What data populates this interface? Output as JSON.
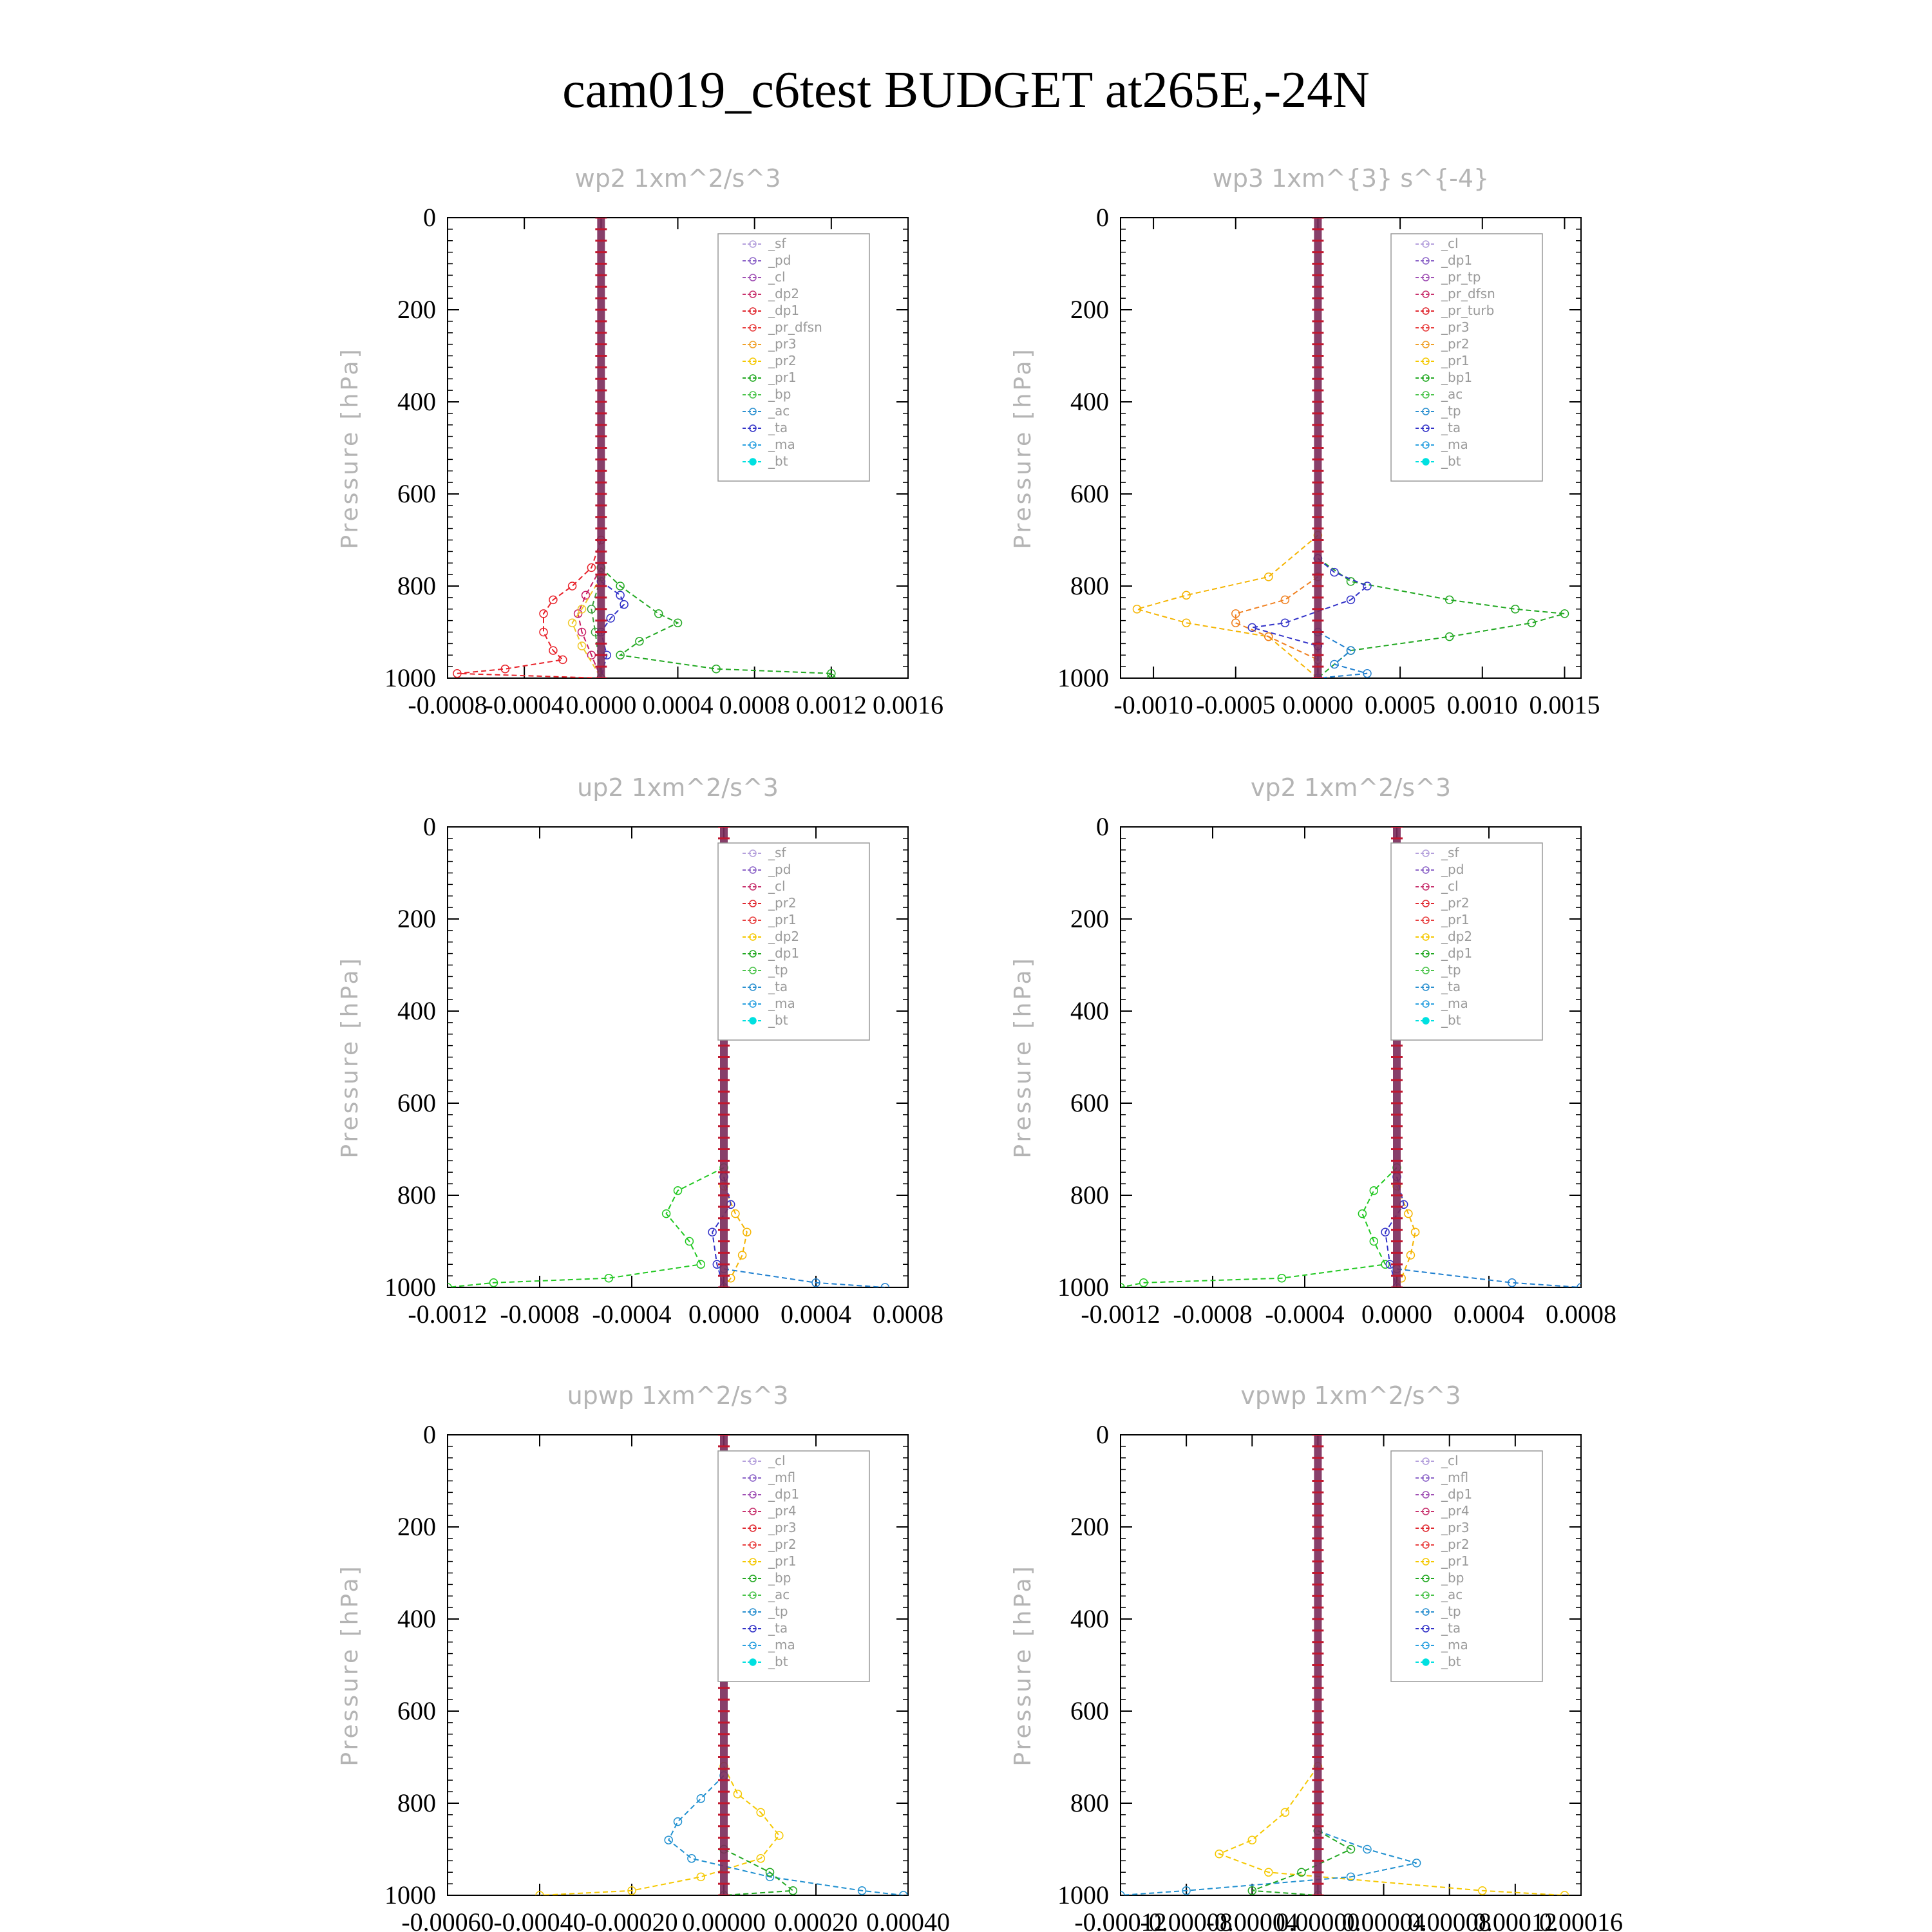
{
  "page": {
    "title": "cam019_c6test  BUDGET at265E,-24N"
  },
  "chart_data": [
    {
      "type": "line",
      "title": "wp2   1xm^2/s^3",
      "ylabel": "Pressure [hPa]",
      "yticks": [
        "0",
        "200",
        "400",
        "600",
        "800",
        "1000"
      ],
      "xticks": [
        "-0.0008",
        "-0.0004",
        "0.0000",
        "0.0004",
        "0.0008",
        "0.0012",
        "0.0016"
      ],
      "xlim": [
        -0.0008,
        0.0016
      ],
      "ylim": [
        0,
        1000
      ],
      "legend_position": "top-right",
      "legend": [
        "_sf",
        "_pd",
        "_cl",
        "_dp2",
        "_dp1",
        "_pr_dfsn",
        "_pr3",
        "_pr2",
        "_pr1",
        "_bp",
        "_ac",
        "_ta",
        "_ma",
        "_bt"
      ],
      "series": [
        {
          "name": "_dp1",
          "color": "#e8222a",
          "points": [
            [
              0,
              700
            ],
            [
              -5e-05,
              760
            ],
            [
              -0.00015,
              800
            ],
            [
              -0.00025,
              830
            ],
            [
              -0.0003,
              860
            ],
            [
              -0.0003,
              900
            ],
            [
              -0.00025,
              940
            ],
            [
              -0.0002,
              960
            ],
            [
              -0.0005,
              980
            ],
            [
              -0.00075,
              990
            ],
            [
              0,
              1000
            ]
          ]
        },
        {
          "name": "_dp2",
          "color": "#c81e64",
          "points": [
            [
              0,
              760
            ],
            [
              -8e-05,
              820
            ],
            [
              -0.00012,
              860
            ],
            [
              -0.0001,
              900
            ],
            [
              -5e-05,
              950
            ],
            [
              0,
              1000
            ]
          ]
        },
        {
          "name": "_pr1",
          "color": "#21a821",
          "points": [
            [
              0,
              760
            ],
            [
              0.0001,
              800
            ],
            [
              0.0003,
              860
            ],
            [
              0.0004,
              880
            ],
            [
              0.0002,
              920
            ],
            [
              0.0001,
              950
            ],
            [
              0.0006,
              980
            ],
            [
              0.0012,
              990
            ],
            [
              0.0012,
              1000
            ]
          ]
        },
        {
          "name": "_pr2",
          "color": "#f0c828",
          "points": [
            [
              0,
              780
            ],
            [
              -0.0001,
              850
            ],
            [
              -0.00015,
              880
            ],
            [
              -0.0001,
              930
            ],
            [
              0,
              1000
            ]
          ]
        },
        {
          "name": "_ta",
          "color": "#3232c8",
          "points": [
            [
              0,
              790
            ],
            [
              0.0001,
              820
            ],
            [
              0.00012,
              840
            ],
            [
              5e-05,
              870
            ],
            [
              0,
              900
            ],
            [
              3e-05,
              950
            ],
            [
              0,
              1000
            ]
          ]
        },
        {
          "name": "_bp",
          "color": "#3aa03a",
          "points": [
            [
              0,
              780
            ],
            [
              -5e-05,
              850
            ],
            [
              -3e-05,
              900
            ],
            [
              0,
              1000
            ]
          ]
        }
      ]
    },
    {
      "type": "line",
      "title": "wp3   1xm^{3} s^{-4}",
      "ylabel": "Pressure [hPa]",
      "yticks": [
        "0",
        "200",
        "400",
        "600",
        "800",
        "1000"
      ],
      "xticks": [
        "-0.0010",
        "-0.0005",
        "0.0000",
        "0.0005",
        "0.0010",
        "0.0015"
      ],
      "xlim": [
        -0.0012,
        0.0016
      ],
      "ylim": [
        0,
        1000
      ],
      "legend_position": "top-right",
      "legend": [
        "_cl",
        "_dp1",
        "_pr_tp",
        "_pr_dfsn",
        "_pr_turb",
        "_pr3",
        "_pr2",
        "_pr1",
        "_bp1",
        "_ac",
        "_tp",
        "_ta",
        "_ma",
        "_bt"
      ],
      "series": [
        {
          "name": "_bp1",
          "color": "#21a821",
          "points": [
            [
              0,
              740
            ],
            [
              0.0002,
              790
            ],
            [
              0.0008,
              830
            ],
            [
              0.0012,
              850
            ],
            [
              0.0015,
              860
            ],
            [
              0.0013,
              880
            ],
            [
              0.0008,
              910
            ],
            [
              0.0002,
              940
            ],
            [
              0,
              1000
            ]
          ]
        },
        {
          "name": "_pr2",
          "color": "#f5b400",
          "points": [
            [
              0,
              690
            ],
            [
              -0.0003,
              780
            ],
            [
              -0.0008,
              820
            ],
            [
              -0.0011,
              850
            ],
            [
              -0.0008,
              880
            ],
            [
              -0.0003,
              910
            ],
            [
              0,
              1000
            ]
          ]
        },
        {
          "name": "_pr1",
          "color": "#f08020",
          "points": [
            [
              0,
              780
            ],
            [
              -0.0002,
              830
            ],
            [
              -0.0005,
              860
            ],
            [
              -0.0005,
              880
            ],
            [
              -0.0003,
              910
            ],
            [
              0,
              960
            ]
          ]
        },
        {
          "name": "_ta",
          "color": "#3232c8",
          "points": [
            [
              0,
              740
            ],
            [
              0.0001,
              770
            ],
            [
              0.0003,
              800
            ],
            [
              0.0002,
              830
            ],
            [
              -0.0002,
              880
            ],
            [
              -0.0004,
              890
            ],
            [
              0,
              930
            ],
            [
              0,
              1000
            ]
          ]
        },
        {
          "name": "_tp",
          "color": "#2080d0",
          "points": [
            [
              0,
              900
            ],
            [
              0.0002,
              940
            ],
            [
              0.0001,
              970
            ],
            [
              0.0003,
              990
            ],
            [
              0,
              1000
            ]
          ]
        }
      ]
    },
    {
      "type": "line",
      "title": "up2   1xm^2/s^3",
      "ylabel": "Pressure [hPa]",
      "yticks": [
        "0",
        "200",
        "400",
        "600",
        "800",
        "1000"
      ],
      "xticks": [
        "-0.0012",
        "-0.0008",
        "-0.0004",
        "0.0000",
        "0.0004",
        "0.0008"
      ],
      "xlim": [
        -0.0012,
        0.0008
      ],
      "ylim": [
        0,
        1000
      ],
      "legend_position": "top-right",
      "legend": [
        "_sf",
        "_pd",
        "_cl",
        "_pr2",
        "_pr1",
        "_dp2",
        "_dp1",
        "_tp",
        "_ta",
        "_ma",
        "_bt"
      ],
      "series": [
        {
          "name": "_dp1",
          "color": "#21c821",
          "points": [
            [
              0,
              740
            ],
            [
              -0.0002,
              790
            ],
            [
              -0.00025,
              840
            ],
            [
              -0.00015,
              900
            ],
            [
              -0.0001,
              950
            ],
            [
              -0.0005,
              980
            ],
            [
              -0.001,
              990
            ],
            [
              -0.0012,
              1000
            ]
          ]
        },
        {
          "name": "_pr2",
          "color": "#f5b400",
          "points": [
            [
              0,
              780
            ],
            [
              5e-05,
              840
            ],
            [
              0.0001,
              880
            ],
            [
              8e-05,
              930
            ],
            [
              3e-05,
              980
            ],
            [
              0,
              1000
            ]
          ]
        },
        {
          "name": "_ta",
          "color": "#3232c8",
          "points": [
            [
              0,
              760
            ],
            [
              3e-05,
              820
            ],
            [
              -5e-05,
              880
            ],
            [
              -3e-05,
              950
            ],
            [
              0,
              1000
            ]
          ]
        },
        {
          "name": "_tp",
          "color": "#2080d0",
          "points": [
            [
              0,
              960
            ],
            [
              0.0004,
              990
            ],
            [
              0.0007,
              1000
            ]
          ]
        }
      ]
    },
    {
      "type": "line",
      "title": "vp2   1xm^2/s^3",
      "ylabel": "Pressure [hPa]",
      "yticks": [
        "0",
        "200",
        "400",
        "600",
        "800",
        "1000"
      ],
      "xticks": [
        "-0.0012",
        "-0.0008",
        "-0.0004",
        "0.0000",
        "0.0004",
        "0.0008"
      ],
      "xlim": [
        -0.0012,
        0.0008
      ],
      "ylim": [
        0,
        1000
      ],
      "legend_position": "top-right",
      "legend": [
        "_sf",
        "_pd",
        "_cl",
        "_pr2",
        "_pr1",
        "_dp2",
        "_dp1",
        "_tp",
        "_ta",
        "_ma",
        "_bt"
      ],
      "series": [
        {
          "name": "_dp1",
          "color": "#21c821",
          "points": [
            [
              0,
              740
            ],
            [
              -0.0001,
              790
            ],
            [
              -0.00015,
              840
            ],
            [
              -0.0001,
              900
            ],
            [
              -5e-05,
              950
            ],
            [
              -0.0005,
              980
            ],
            [
              -0.0011,
              990
            ],
            [
              -0.0012,
              1000
            ]
          ]
        },
        {
          "name": "_pr2",
          "color": "#f5b400",
          "points": [
            [
              0,
              780
            ],
            [
              5e-05,
              840
            ],
            [
              8e-05,
              880
            ],
            [
              6e-05,
              930
            ],
            [
              2e-05,
              980
            ],
            [
              0,
              1000
            ]
          ]
        },
        {
          "name": "_ta",
          "color": "#3232c8",
          "points": [
            [
              0,
              760
            ],
            [
              3e-05,
              820
            ],
            [
              -5e-05,
              880
            ],
            [
              -3e-05,
              950
            ],
            [
              0,
              1000
            ]
          ]
        },
        {
          "name": "_tp",
          "color": "#2080d0",
          "points": [
            [
              0,
              960
            ],
            [
              0.0005,
              990
            ],
            [
              0.0008,
              1000
            ]
          ]
        }
      ]
    },
    {
      "type": "line",
      "title": "upwp   1xm^2/s^3",
      "ylabel": "Pressure [hPa]",
      "yticks": [
        "0",
        "200",
        "400",
        "600",
        "800",
        "1000"
      ],
      "xticks": [
        "-0.00060",
        "-0.00040",
        "-0.00020",
        "0.00000",
        "0.00020",
        "0.00040"
      ],
      "xlim": [
        -0.0006,
        0.0004
      ],
      "ylim": [
        0,
        1000
      ],
      "legend_position": "top-right",
      "legend": [
        "_cl",
        "_mfl",
        "_dp1",
        "_pr4",
        "_pr3",
        "_pr2",
        "_pr1",
        "_bp",
        "_ac",
        "_tp",
        "_ta",
        "_ma",
        "_bt"
      ],
      "series": [
        {
          "name": "_pr1",
          "color": "#f5c800",
          "points": [
            [
              0,
              720
            ],
            [
              3e-05,
              780
            ],
            [
              8e-05,
              820
            ],
            [
              0.00012,
              870
            ],
            [
              8e-05,
              920
            ],
            [
              -5e-05,
              960
            ],
            [
              -0.0002,
              990
            ],
            [
              -0.0004,
              1000
            ]
          ]
        },
        {
          "name": "_tp",
          "color": "#2090d0",
          "points": [
            [
              0,
              740
            ],
            [
              -5e-05,
              790
            ],
            [
              -0.0001,
              840
            ],
            [
              -0.00012,
              880
            ],
            [
              -7e-05,
              920
            ],
            [
              0.0001,
              960
            ],
            [
              0.0003,
              990
            ],
            [
              0.00039,
              1000
            ]
          ]
        },
        {
          "name": "_bp",
          "color": "#21a821",
          "points": [
            [
              0,
              900
            ],
            [
              0.0001,
              950
            ],
            [
              0.00015,
              990
            ],
            [
              0,
              1000
            ]
          ]
        }
      ]
    },
    {
      "type": "line",
      "title": "vpwp   1xm^2/s^3",
      "ylabel": "Pressure [hPa]",
      "yticks": [
        "0",
        "200",
        "400",
        "600",
        "800",
        "1000"
      ],
      "xticks": [
        "-0.00012",
        "-0.00008",
        "-0.00004",
        "0.00000",
        "0.00004",
        "0.00008",
        "0.00012",
        "0.00016"
      ],
      "xlim": [
        -0.00012,
        0.00016
      ],
      "ylim": [
        0,
        1000
      ],
      "legend_position": "top-right",
      "legend": [
        "_cl",
        "_mfl",
        "_dp1",
        "_pr4",
        "_pr3",
        "_pr2",
        "_pr1",
        "_bp",
        "_ac",
        "_tp",
        "_ta",
        "_ma",
        "_bt"
      ],
      "series": [
        {
          "name": "_pr1",
          "color": "#f5c800",
          "points": [
            [
              0,
              720
            ],
            [
              -2e-05,
              820
            ],
            [
              -4e-05,
              880
            ],
            [
              -6e-05,
              910
            ],
            [
              -3e-05,
              950
            ],
            [
              0.0001,
              990
            ],
            [
              0.00015,
              1000
            ]
          ]
        },
        {
          "name": "_tp",
          "color": "#2090d0",
          "points": [
            [
              0,
              860
            ],
            [
              3e-05,
              900
            ],
            [
              6e-05,
              930
            ],
            [
              2e-05,
              960
            ],
            [
              -8e-05,
              990
            ],
            [
              -0.00012,
              1000
            ]
          ]
        },
        {
          "name": "_bp",
          "color": "#21a821",
          "points": [
            [
              0,
              860
            ],
            [
              2e-05,
              900
            ],
            [
              -1e-05,
              950
            ],
            [
              -4e-05,
              990
            ],
            [
              0,
              1000
            ]
          ]
        }
      ]
    }
  ]
}
